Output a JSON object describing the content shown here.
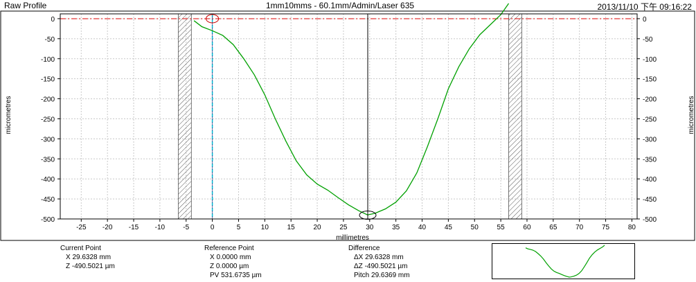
{
  "window": {
    "title": "Raw Profile",
    "subtitle": "1mm10mms - 60.1mm/Admin/Laser 635",
    "timestamp": "2013/11/10 下午 09:16:22"
  },
  "chart_data": {
    "type": "line",
    "xlabel": "millimetres",
    "ylabel": "micrometres",
    "xlim": [
      -29,
      81
    ],
    "ylim": [
      -500,
      12
    ],
    "x_ticks": [
      -25,
      -20,
      -15,
      -10,
      -5,
      0,
      5,
      10,
      15,
      20,
      25,
      30,
      35,
      40,
      45,
      50,
      55,
      60,
      65,
      70,
      75,
      80
    ],
    "y_ticks": [
      0,
      -50,
      -100,
      -150,
      -200,
      -250,
      -300,
      -350,
      -400,
      -450,
      -500
    ],
    "grid": true,
    "reference_line_z": 0,
    "reference_marker_x": 0,
    "cursor_x": 29.6328,
    "excluded_zones": [
      [
        -6.5,
        -4
      ],
      [
        56.5,
        59
      ]
    ],
    "series": [
      {
        "color": "#00a000",
        "x": [
          -3.5,
          -2,
          0,
          2,
          4,
          6,
          8,
          10,
          12,
          14,
          16,
          18,
          20,
          22,
          24,
          26,
          28,
          29.6,
          31,
          33,
          35,
          37,
          39,
          41,
          43,
          45,
          47,
          49,
          51,
          53,
          55,
          56.5
        ],
        "y": [
          -5,
          -20,
          -30,
          -42,
          -65,
          -100,
          -140,
          -190,
          -250,
          -305,
          -355,
          -390,
          -413,
          -428,
          -447,
          -465,
          -480,
          -490,
          -486,
          -475,
          -458,
          -430,
          -385,
          -320,
          -250,
          -175,
          -120,
          -75,
          -40,
          -15,
          10,
          38
        ]
      }
    ]
  },
  "current_point": {
    "title": "Current Point",
    "x": "X  29.6328 mm",
    "z": "Z  -490.5021 µm"
  },
  "reference_point": {
    "title": "Reference Point",
    "x": "X  0.0000 mm",
    "z": "Z  0.0000 µm",
    "pv": "PV 531.6735 µm"
  },
  "difference": {
    "title": "Difference",
    "dx": "ΔX  29.6328 mm",
    "dz": "ΔZ  -490.5021 µm",
    "pitch": "Pitch 29.6369 mm"
  }
}
